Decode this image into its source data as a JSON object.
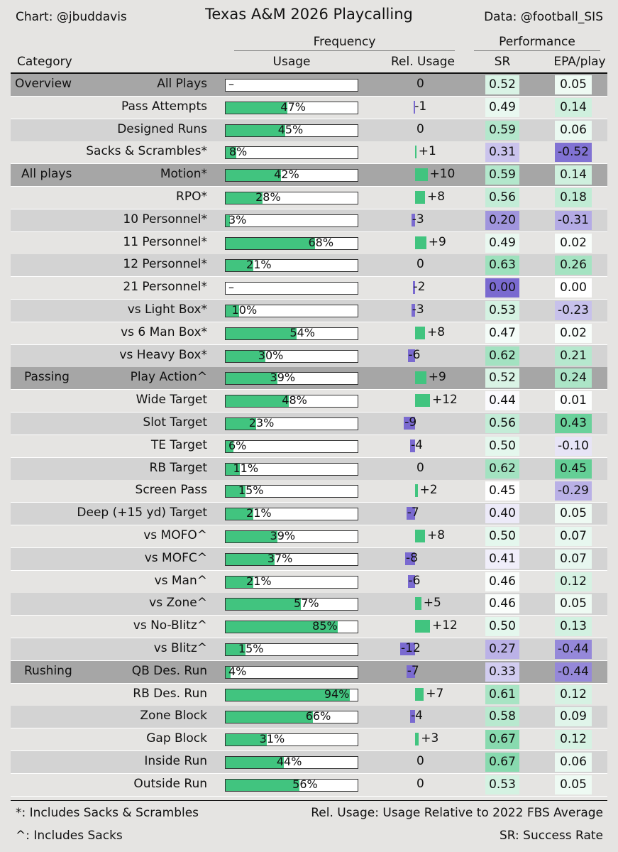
{
  "header": {
    "credit": "Chart: @jbuddavis",
    "title": "Texas A&M 2026 Playcalling",
    "source": "Data: @football_SIS"
  },
  "groups": {
    "frequency": "Frequency",
    "performance": "Performance"
  },
  "columns": {
    "category": "Category",
    "usage": "Usage",
    "rel_usage": "Rel. Usage",
    "sr": "SR",
    "epa": "EPA/play"
  },
  "footer": {
    "note1": "*: Includes Sacks & Scrambles",
    "note2": "^: Includes Sacks",
    "note3": "Rel. Usage: Usage Relative to 2022 FBS Average",
    "note4": "SR: Success Rate"
  },
  "colors": {
    "usage_bar": "#41c47f",
    "positive": "#41c47f",
    "negative": "#7a6ad0",
    "section_band": "#a6a6a6"
  },
  "chart_data": {
    "type": "table",
    "title": "Texas A&M 2026 Playcalling",
    "rows": [
      {
        "section": "Overview",
        "category": "All Plays",
        "usage": null,
        "usage_label": "–",
        "rel": 0,
        "rel_label": "0",
        "sr": 0.52,
        "sr_label": "0.52",
        "epa": 0.05,
        "epa_label": "0.05"
      },
      {
        "section": "",
        "category": "Pass Attempts",
        "usage": 47,
        "usage_label": "47%",
        "rel": -1,
        "rel_label": "-1",
        "sr": 0.49,
        "sr_label": "0.49",
        "epa": 0.14,
        "epa_label": "0.14"
      },
      {
        "section": "",
        "category": "Designed Runs",
        "usage": 45,
        "usage_label": "45%",
        "rel": 0,
        "rel_label": "0",
        "sr": 0.59,
        "sr_label": "0.59",
        "epa": 0.06,
        "epa_label": "0.06"
      },
      {
        "section": "",
        "category": "Sacks & Scrambles*",
        "usage": 8,
        "usage_label": "8%",
        "rel": 1,
        "rel_label": "+1",
        "sr": 0.31,
        "sr_label": "0.31",
        "epa": -0.52,
        "epa_label": "-0.52"
      },
      {
        "section": "All plays",
        "category": "Motion*",
        "usage": 42,
        "usage_label": "42%",
        "rel": 10,
        "rel_label": "+10",
        "sr": 0.59,
        "sr_label": "0.59",
        "epa": 0.14,
        "epa_label": "0.14"
      },
      {
        "section": "",
        "category": "RPO*",
        "usage": 28,
        "usage_label": "28%",
        "rel": 8,
        "rel_label": "+8",
        "sr": 0.56,
        "sr_label": "0.56",
        "epa": 0.18,
        "epa_label": "0.18"
      },
      {
        "section": "",
        "category": "10 Personnel*",
        "usage": 3,
        "usage_label": "3%",
        "rel": -3,
        "rel_label": "-3",
        "sr": 0.2,
        "sr_label": "0.20",
        "epa": -0.31,
        "epa_label": "-0.31"
      },
      {
        "section": "",
        "category": "11 Personnel*",
        "usage": 68,
        "usage_label": "68%",
        "rel": 9,
        "rel_label": "+9",
        "sr": 0.49,
        "sr_label": "0.49",
        "epa": 0.02,
        "epa_label": "0.02"
      },
      {
        "section": "",
        "category": "12 Personnel*",
        "usage": 21,
        "usage_label": "21%",
        "rel": 0,
        "rel_label": "0",
        "sr": 0.63,
        "sr_label": "0.63",
        "epa": 0.26,
        "epa_label": "0.26"
      },
      {
        "section": "",
        "category": "21 Personnel*",
        "usage": null,
        "usage_label": "–",
        "rel": -2,
        "rel_label": "-2",
        "sr": 0.0,
        "sr_label": "0.00",
        "epa": 0.0,
        "epa_label": "0.00"
      },
      {
        "section": "",
        "category": "vs Light Box*",
        "usage": 10,
        "usage_label": "10%",
        "rel": -3,
        "rel_label": "-3",
        "sr": 0.53,
        "sr_label": "0.53",
        "epa": -0.23,
        "epa_label": "-0.23"
      },
      {
        "section": "",
        "category": "vs 6 Man Box*",
        "usage": 54,
        "usage_label": "54%",
        "rel": 8,
        "rel_label": "+8",
        "sr": 0.47,
        "sr_label": "0.47",
        "epa": 0.02,
        "epa_label": "0.02"
      },
      {
        "section": "",
        "category": "vs Heavy Box*",
        "usage": 30,
        "usage_label": "30%",
        "rel": -6,
        "rel_label": "-6",
        "sr": 0.62,
        "sr_label": "0.62",
        "epa": 0.21,
        "epa_label": "0.21"
      },
      {
        "section": "Passing",
        "category": "Play Action^",
        "usage": 39,
        "usage_label": "39%",
        "rel": 9,
        "rel_label": "+9",
        "sr": 0.52,
        "sr_label": "0.52",
        "epa": 0.24,
        "epa_label": "0.24"
      },
      {
        "section": "",
        "category": "Wide Target",
        "usage": 48,
        "usage_label": "48%",
        "rel": 12,
        "rel_label": "+12",
        "sr": 0.44,
        "sr_label": "0.44",
        "epa": 0.01,
        "epa_label": "0.01"
      },
      {
        "section": "",
        "category": "Slot Target",
        "usage": 23,
        "usage_label": "23%",
        "rel": -9,
        "rel_label": "-9",
        "sr": 0.56,
        "sr_label": "0.56",
        "epa": 0.43,
        "epa_label": "0.43"
      },
      {
        "section": "",
        "category": "TE Target",
        "usage": 6,
        "usage_label": "6%",
        "rel": -4,
        "rel_label": "-4",
        "sr": 0.5,
        "sr_label": "0.50",
        "epa": -0.1,
        "epa_label": "-0.10"
      },
      {
        "section": "",
        "category": "RB Target",
        "usage": 11,
        "usage_label": "11%",
        "rel": 0,
        "rel_label": "0",
        "sr": 0.62,
        "sr_label": "0.62",
        "epa": 0.45,
        "epa_label": "0.45"
      },
      {
        "section": "",
        "category": "Screen Pass",
        "usage": 15,
        "usage_label": "15%",
        "rel": 2,
        "rel_label": "+2",
        "sr": 0.45,
        "sr_label": "0.45",
        "epa": -0.29,
        "epa_label": "-0.29"
      },
      {
        "section": "",
        "category": "Deep (+15 yd) Target",
        "usage": 21,
        "usage_label": "21%",
        "rel": -7,
        "rel_label": "-7",
        "sr": 0.4,
        "sr_label": "0.40",
        "epa": 0.05,
        "epa_label": "0.05"
      },
      {
        "section": "",
        "category": "vs MOFO^",
        "usage": 39,
        "usage_label": "39%",
        "rel": 8,
        "rel_label": "+8",
        "sr": 0.5,
        "sr_label": "0.50",
        "epa": 0.07,
        "epa_label": "0.07"
      },
      {
        "section": "",
        "category": "vs MOFC^",
        "usage": 37,
        "usage_label": "37%",
        "rel": -8,
        "rel_label": "-8",
        "sr": 0.41,
        "sr_label": "0.41",
        "epa": 0.07,
        "epa_label": "0.07"
      },
      {
        "section": "",
        "category": "vs Man^",
        "usage": 21,
        "usage_label": "21%",
        "rel": -6,
        "rel_label": "-6",
        "sr": 0.46,
        "sr_label": "0.46",
        "epa": 0.12,
        "epa_label": "0.12"
      },
      {
        "section": "",
        "category": "vs Zone^",
        "usage": 57,
        "usage_label": "57%",
        "rel": 5,
        "rel_label": "+5",
        "sr": 0.46,
        "sr_label": "0.46",
        "epa": 0.05,
        "epa_label": "0.05"
      },
      {
        "section": "",
        "category": "vs No-Blitz^",
        "usage": 85,
        "usage_label": "85%",
        "rel": 12,
        "rel_label": "+12",
        "sr": 0.5,
        "sr_label": "0.50",
        "epa": 0.13,
        "epa_label": "0.13"
      },
      {
        "section": "",
        "category": "vs Blitz^",
        "usage": 15,
        "usage_label": "15%",
        "rel": -12,
        "rel_label": "-12",
        "sr": 0.27,
        "sr_label": "0.27",
        "epa": -0.44,
        "epa_label": "-0.44"
      },
      {
        "section": "Rushing",
        "category": "QB Des. Run",
        "usage": 4,
        "usage_label": "4%",
        "rel": -7,
        "rel_label": "-7",
        "sr": 0.33,
        "sr_label": "0.33",
        "epa": -0.44,
        "epa_label": "-0.44"
      },
      {
        "section": "",
        "category": "RB Des. Run",
        "usage": 94,
        "usage_label": "94%",
        "rel": 7,
        "rel_label": "+7",
        "sr": 0.61,
        "sr_label": "0.61",
        "epa": 0.12,
        "epa_label": "0.12"
      },
      {
        "section": "",
        "category": "Zone Block",
        "usage": 66,
        "usage_label": "66%",
        "rel": -4,
        "rel_label": "-4",
        "sr": 0.58,
        "sr_label": "0.58",
        "epa": 0.09,
        "epa_label": "0.09"
      },
      {
        "section": "",
        "category": "Gap Block",
        "usage": 31,
        "usage_label": "31%",
        "rel": 3,
        "rel_label": "+3",
        "sr": 0.67,
        "sr_label": "0.67",
        "epa": 0.12,
        "epa_label": "0.12"
      },
      {
        "section": "",
        "category": "Inside Run",
        "usage": 44,
        "usage_label": "44%",
        "rel": 0,
        "rel_label": "0",
        "sr": 0.67,
        "sr_label": "0.67",
        "epa": 0.06,
        "epa_label": "0.06"
      },
      {
        "section": "",
        "category": "Outside Run",
        "usage": 56,
        "usage_label": "56%",
        "rel": 0,
        "rel_label": "0",
        "sr": 0.53,
        "sr_label": "0.53",
        "epa": 0.05,
        "epa_label": "0.05"
      }
    ]
  }
}
